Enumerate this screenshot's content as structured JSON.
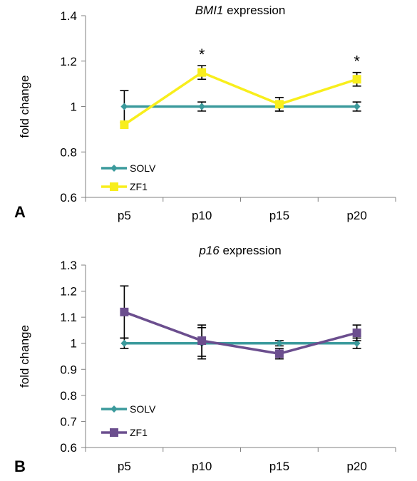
{
  "colors": {
    "solv": "#3b9a9c",
    "zf1_a": "#f8ee1c",
    "zf1_b": "#6b4e8e",
    "axis": "#808080",
    "errorbar": "#000000"
  },
  "chart_data": [
    {
      "type": "line",
      "panel_label": "A",
      "title_italic": "BMI1",
      "title_rest": " expression",
      "xlabel": "",
      "ylabel": "fold change",
      "categories": [
        "p5",
        "p10",
        "p15",
        "p20"
      ],
      "ylim": [
        0.6,
        1.4
      ],
      "yticks": [
        "0.6",
        "0.8",
        "1",
        "1.2",
        "1.4"
      ],
      "grid": false,
      "legend_position": "bottom-left",
      "series": [
        {
          "name": "SOLV",
          "marker": "diamond",
          "color_key": "solv",
          "values": [
            1.0,
            1.0,
            1.0,
            1.0
          ],
          "errors": [
            0.07,
            0.02,
            0.02,
            0.02
          ]
        },
        {
          "name": "ZF1",
          "marker": "square",
          "color_key": "zf1_a",
          "values": [
            0.92,
            1.15,
            1.01,
            1.12
          ],
          "errors": [
            0.0,
            0.03,
            0.03,
            0.03
          ]
        }
      ],
      "annotations": [
        {
          "category": "p10",
          "text": "*"
        },
        {
          "category": "p20",
          "text": "*"
        }
      ]
    },
    {
      "type": "line",
      "panel_label": "B",
      "title_italic": "p16",
      "title_rest": " expression",
      "xlabel": "",
      "ylabel": "fold change",
      "categories": [
        "p5",
        "p10",
        "p15",
        "p20"
      ],
      "ylim": [
        0.6,
        1.3
      ],
      "yticks": [
        "0.6",
        "0.7",
        "0.8",
        "0.9",
        "1",
        "1.1",
        "1.2",
        "1.3"
      ],
      "grid": false,
      "legend_position": "bottom-left",
      "series": [
        {
          "name": "SOLV",
          "marker": "diamond",
          "color_key": "solv",
          "values": [
            1.0,
            1.0,
            1.0,
            1.0
          ],
          "errors": [
            0.02,
            0.06,
            0.01,
            0.02
          ]
        },
        {
          "name": "ZF1",
          "marker": "square",
          "color_key": "zf1_b",
          "values": [
            1.12,
            1.01,
            0.96,
            1.04
          ],
          "errors": [
            0.1,
            0.06,
            0.02,
            0.03
          ]
        }
      ],
      "annotations": []
    }
  ]
}
